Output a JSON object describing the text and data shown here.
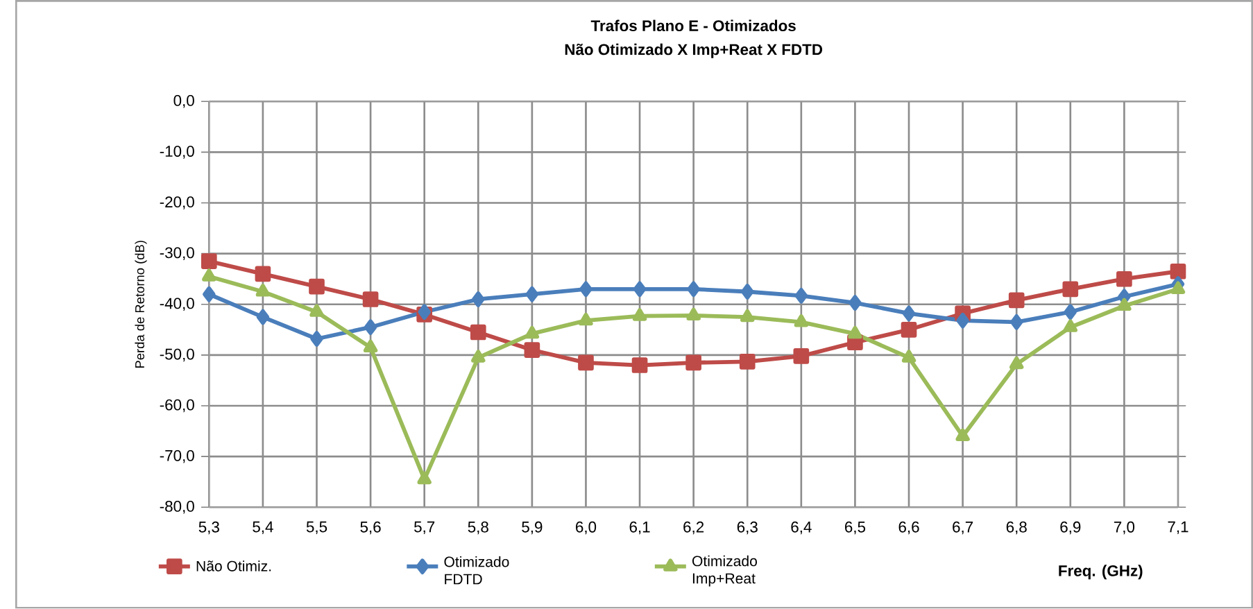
{
  "chart_data": {
    "type": "line",
    "title": "Trafos Plano E - Otimizados",
    "subtitle": "Não Otimizado X Imp+Reat X FDTD",
    "xlabel": "Freq. (GHz)",
    "ylabel": "Perda de Retorno (dB)",
    "x": [
      5.3,
      5.4,
      5.5,
      5.6,
      5.7,
      5.8,
      5.9,
      6.0,
      6.1,
      6.2,
      6.3,
      6.4,
      6.5,
      6.6,
      6.7,
      6.8,
      6.9,
      7.0,
      7.1
    ],
    "series": [
      {
        "name": "Não Otimiz.",
        "color": "#be4b48",
        "marker": "square",
        "values": [
          -31.5,
          -34,
          -36.5,
          -39,
          -42,
          -45.5,
          -49,
          -51.5,
          -52,
          -51.5,
          -51.3,
          -50.2,
          -47.5,
          -45,
          -41.8,
          -39.2,
          -37,
          -35,
          -33.5
        ]
      },
      {
        "name": "Otimizado FDTD",
        "color": "#4a7ebb",
        "marker": "diamond",
        "values": [
          -38,
          -42.5,
          -46.8,
          -44.5,
          -41.5,
          -39,
          -38,
          -37,
          -37,
          -37,
          -37.5,
          -38.3,
          -39.7,
          -41.8,
          -43.2,
          -43.5,
          -41.5,
          -38.5,
          -36
        ]
      },
      {
        "name": "Otimizado Imp+Reat",
        "color": "#9bbb59",
        "marker": "triangle",
        "values": [
          -34.5,
          -37.5,
          -41.5,
          -48.5,
          -74.5,
          -50.5,
          -45.8,
          -43.2,
          -42.3,
          -42.2,
          -42.5,
          -43.5,
          -45.8,
          -50.5,
          -66,
          -51.8,
          -44.5,
          -40.3,
          -37
        ]
      }
    ],
    "xlim": [
      5.3,
      7.1
    ],
    "ylim": [
      -80,
      0
    ],
    "xticks": [
      {
        "value": 5.3,
        "label": "5,3"
      },
      {
        "value": 5.4,
        "label": "5,4"
      },
      {
        "value": 5.5,
        "label": "5,5"
      },
      {
        "value": 5.6,
        "label": "5,6"
      },
      {
        "value": 5.7,
        "label": "5,7"
      },
      {
        "value": 5.8,
        "label": "5,8"
      },
      {
        "value": 5.9,
        "label": "5,9"
      },
      {
        "value": 6.0,
        "label": "6,0"
      },
      {
        "value": 6.1,
        "label": "6,1"
      },
      {
        "value": 6.2,
        "label": "6,2"
      },
      {
        "value": 6.3,
        "label": "6,3"
      },
      {
        "value": 6.4,
        "label": "6,4"
      },
      {
        "value": 6.5,
        "label": "6,5"
      },
      {
        "value": 6.6,
        "label": "6,6"
      },
      {
        "value": 6.7,
        "label": "6,7"
      },
      {
        "value": 6.8,
        "label": "6,8"
      },
      {
        "value": 6.9,
        "label": "6,9"
      },
      {
        "value": 7.0,
        "label": "7,0"
      },
      {
        "value": 7.1,
        "label": "7,1"
      }
    ],
    "yticks": [
      {
        "value": -80,
        "label": "-80,0"
      },
      {
        "value": -70,
        "label": "-70,0"
      },
      {
        "value": -60,
        "label": "-60,0"
      },
      {
        "value": -50,
        "label": "-50,0"
      },
      {
        "value": -40,
        "label": "-40,0"
      },
      {
        "value": -30,
        "label": "-30,0"
      },
      {
        "value": -20,
        "label": "-20,0"
      },
      {
        "value": -10,
        "label": "-10,0"
      },
      {
        "value": 0,
        "label": "0,0"
      }
    ],
    "grid": true,
    "legend": "bottom",
    "line_style": "solid"
  }
}
